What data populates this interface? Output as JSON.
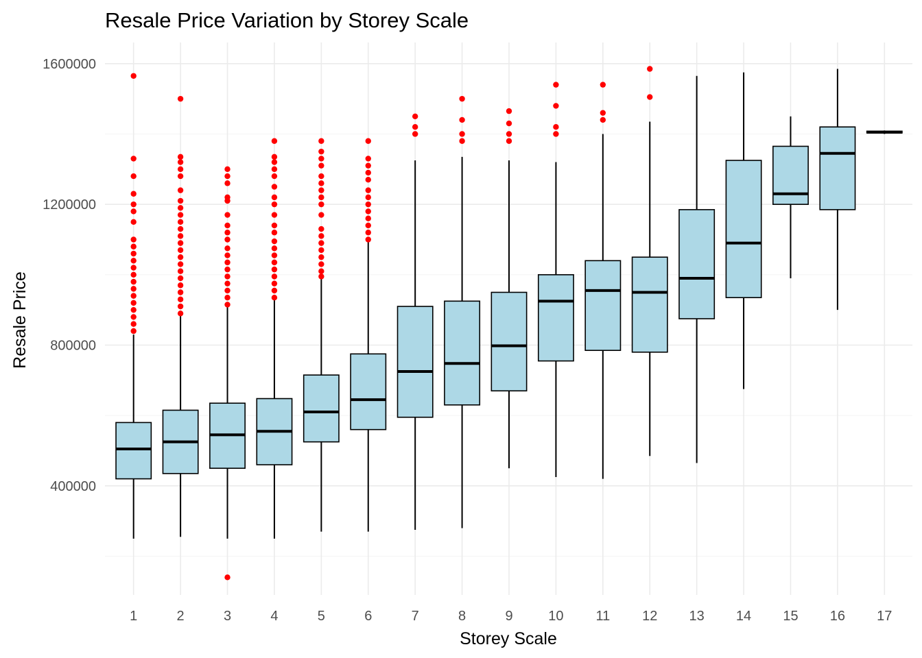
{
  "chart_data": {
    "type": "box",
    "title": "Resale Price Variation by Storey Scale",
    "xlabel": "Storey Scale",
    "ylabel": "Resale Price",
    "ylim": [
      90000,
      1660000
    ],
    "y_ticks": [
      400000,
      800000,
      1200000,
      1600000
    ],
    "y_tick_labels": [
      "400000",
      "800000",
      "1200000",
      "1600000"
    ],
    "categories": [
      "1",
      "2",
      "3",
      "4",
      "5",
      "6",
      "7",
      "8",
      "9",
      "10",
      "11",
      "12",
      "13",
      "14",
      "15",
      "16",
      "17"
    ],
    "grid": true,
    "box_fill": "#add8e6",
    "box_stroke": "#000000",
    "outlier_color": "#ff0000",
    "boxes": [
      {
        "category": "1",
        "min": 250000,
        "q1": 420000,
        "median": 505000,
        "q3": 580000,
        "max": 830000,
        "outliers": [
          840000,
          860000,
          880000,
          900000,
          920000,
          940000,
          960000,
          980000,
          1000000,
          1020000,
          1040000,
          1060000,
          1080000,
          1100000,
          1150000,
          1180000,
          1200000,
          1230000,
          1280000,
          1330000,
          1565000
        ]
      },
      {
        "category": "2",
        "min": 255000,
        "q1": 435000,
        "median": 525000,
        "q3": 615000,
        "max": 885000,
        "outliers": [
          890000,
          910000,
          930000,
          950000,
          970000,
          990000,
          1010000,
          1030000,
          1050000,
          1070000,
          1090000,
          1110000,
          1130000,
          1150000,
          1170000,
          1190000,
          1210000,
          1240000,
          1280000,
          1300000,
          1320000,
          1335000,
          1500000
        ]
      },
      {
        "category": "3",
        "min": 250000,
        "q1": 450000,
        "median": 545000,
        "q3": 635000,
        "max": 910000,
        "outliers": [
          140000,
          915000,
          935000,
          955000,
          975000,
          995000,
          1015000,
          1035000,
          1055000,
          1075000,
          1100000,
          1120000,
          1140000,
          1170000,
          1210000,
          1220000,
          1260000,
          1280000,
          1300000
        ]
      },
      {
        "category": "4",
        "min": 250000,
        "q1": 460000,
        "median": 555000,
        "q3": 648000,
        "max": 930000,
        "outliers": [
          935000,
          955000,
          975000,
          995000,
          1015000,
          1035000,
          1055000,
          1075000,
          1095000,
          1120000,
          1140000,
          1170000,
          1200000,
          1220000,
          1250000,
          1280000,
          1300000,
          1320000,
          1335000,
          1380000
        ]
      },
      {
        "category": "5",
        "min": 270000,
        "q1": 525000,
        "median": 610000,
        "q3": 715000,
        "max": 990000,
        "outliers": [
          995000,
          1010000,
          1030000,
          1050000,
          1070000,
          1090000,
          1110000,
          1130000,
          1170000,
          1200000,
          1220000,
          1240000,
          1260000,
          1280000,
          1310000,
          1330000,
          1350000,
          1380000
        ]
      },
      {
        "category": "6",
        "min": 270000,
        "q1": 560000,
        "median": 645000,
        "q3": 775000,
        "max": 1100000,
        "outliers": [
          1100000,
          1120000,
          1140000,
          1160000,
          1180000,
          1200000,
          1220000,
          1240000,
          1270000,
          1290000,
          1310000,
          1330000,
          1380000
        ]
      },
      {
        "category": "7",
        "min": 275000,
        "q1": 595000,
        "median": 725000,
        "q3": 910000,
        "max": 1325000,
        "outliers": [
          1400000,
          1420000,
          1450000
        ]
      },
      {
        "category": "8",
        "min": 280000,
        "q1": 630000,
        "median": 748000,
        "q3": 925000,
        "max": 1335000,
        "outliers": [
          1380000,
          1400000,
          1440000,
          1500000
        ]
      },
      {
        "category": "9",
        "min": 450000,
        "q1": 670000,
        "median": 798000,
        "q3": 950000,
        "max": 1325000,
        "outliers": [
          1380000,
          1400000,
          1430000,
          1465000
        ]
      },
      {
        "category": "10",
        "min": 425000,
        "q1": 755000,
        "median": 925000,
        "q3": 1000000,
        "max": 1320000,
        "outliers": [
          1400000,
          1420000,
          1480000,
          1540000
        ]
      },
      {
        "category": "11",
        "min": 420000,
        "q1": 785000,
        "median": 955000,
        "q3": 1040000,
        "max": 1400000,
        "outliers": [
          1440000,
          1460000,
          1540000
        ]
      },
      {
        "category": "12",
        "min": 485000,
        "q1": 780000,
        "median": 950000,
        "q3": 1050000,
        "max": 1435000,
        "outliers": [
          1505000,
          1585000
        ]
      },
      {
        "category": "13",
        "min": 465000,
        "q1": 875000,
        "median": 990000,
        "q3": 1185000,
        "max": 1565000,
        "outliers": []
      },
      {
        "category": "14",
        "min": 675000,
        "q1": 935000,
        "median": 1090000,
        "q3": 1325000,
        "max": 1575000,
        "outliers": []
      },
      {
        "category": "15",
        "min": 990000,
        "q1": 1200000,
        "median": 1230000,
        "q3": 1365000,
        "max": 1450000,
        "outliers": []
      },
      {
        "category": "16",
        "min": 900000,
        "q1": 1185000,
        "median": 1345000,
        "q3": 1420000,
        "max": 1585000,
        "outliers": []
      },
      {
        "category": "17",
        "min": 1400000,
        "q1": 1403000,
        "median": 1405000,
        "q3": 1408000,
        "max": 1410000,
        "outliers": []
      }
    ]
  }
}
